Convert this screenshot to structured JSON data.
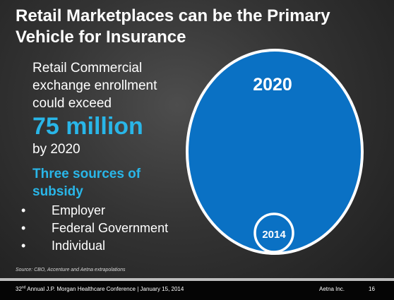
{
  "title": "Retail Marketplaces can be the Primary Vehicle for Insurance",
  "left": {
    "intro_lines": [
      "Retail Commercial",
      "exchange enrollment",
      "could exceed"
    ],
    "big_number": "75 million",
    "by_year": "by 2020",
    "subsidy_heading_lines": [
      "Three sources of",
      "subsidy"
    ],
    "bullets": [
      "Employer",
      "Federal Government",
      "Individual"
    ]
  },
  "diagram": {
    "large_circle_label": "2020",
    "small_circle_label": "2014",
    "colors": {
      "fill": "#0a71c4",
      "outline": "#ffffff",
      "small_fill": "#0a71c4"
    }
  },
  "source": "Source: CBO, Accenture and Aetna extrapolations",
  "footer": {
    "ordinal_number": "32",
    "ordinal_suffix": "nd",
    "conference": " Annual  J.P. Morgan Healthcare Conference | January 15, 2014",
    "company": "Aetna Inc.",
    "page": "16"
  },
  "colors": {
    "accent": "#29b6e8",
    "text": "#ffffff",
    "footer_bar": "#050505",
    "footer_rule": "#bdbdbd"
  }
}
